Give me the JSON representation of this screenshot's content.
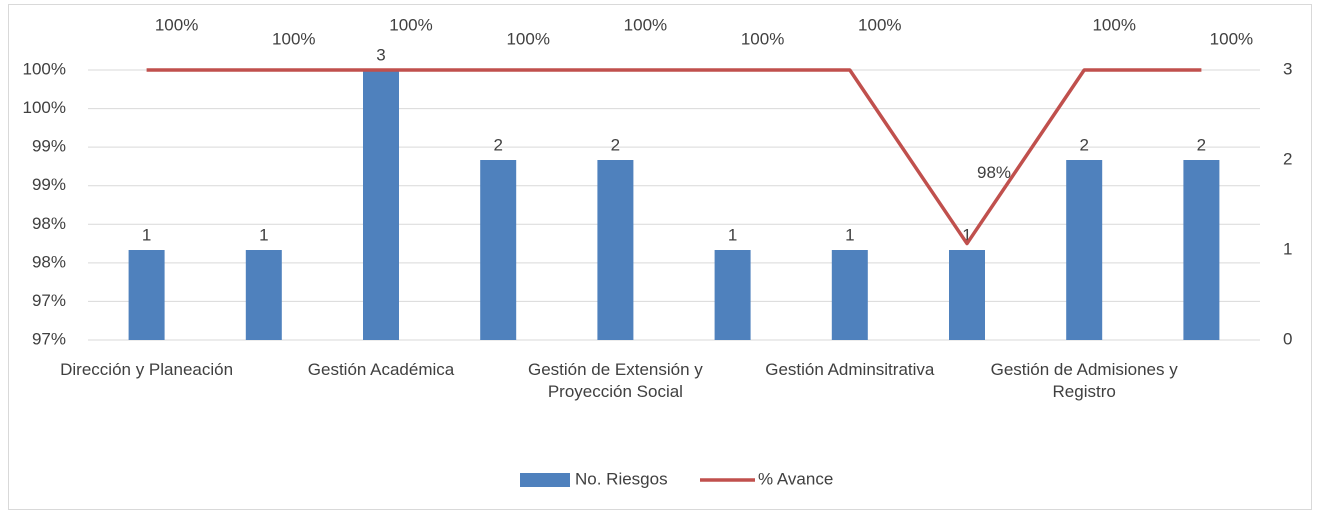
{
  "chart_data": {
    "type": "bar_line",
    "categories": [
      "Dirección y Planeación",
      null,
      "Gestión Académica",
      null,
      "Gestión de Extensión y Proyección Social",
      null,
      "Gestión Adminsitrativa",
      null,
      "Gestión de Admisiones y Registro",
      null
    ],
    "series": [
      {
        "name": "No. Riesgos",
        "type": "bar",
        "axis": "y2",
        "color": "#4f81bd",
        "values": [
          1,
          1,
          3,
          2,
          2,
          1,
          1,
          1,
          2,
          2
        ]
      },
      {
        "name": "% Avance",
        "type": "line",
        "axis": "y",
        "color": "#c0504d",
        "values": [
          100,
          100,
          100,
          100,
          100,
          100,
          100,
          97.75,
          100,
          100
        ],
        "value_labels": [
          "100%",
          "100%",
          "100%",
          "100%",
          "100%",
          "100%",
          "100%",
          "98%",
          "100%",
          "100%"
        ]
      }
    ],
    "ylim": [
      96.5,
      100
    ],
    "yticks": [
      {
        "value": 96.5,
        "label": "97%"
      },
      {
        "value": 97,
        "label": "97%"
      },
      {
        "value": 97.5,
        "label": "98%"
      },
      {
        "value": 98,
        "label": "98%"
      },
      {
        "value": 98.5,
        "label": "99%"
      },
      {
        "value": 99,
        "label": "99%"
      },
      {
        "value": 99.5,
        "label": "100%"
      },
      {
        "value": 100,
        "label": "100%"
      }
    ],
    "y2lim": [
      0,
      3
    ],
    "y2ticks": [
      0,
      1,
      2,
      3
    ],
    "legend": "bottom"
  }
}
